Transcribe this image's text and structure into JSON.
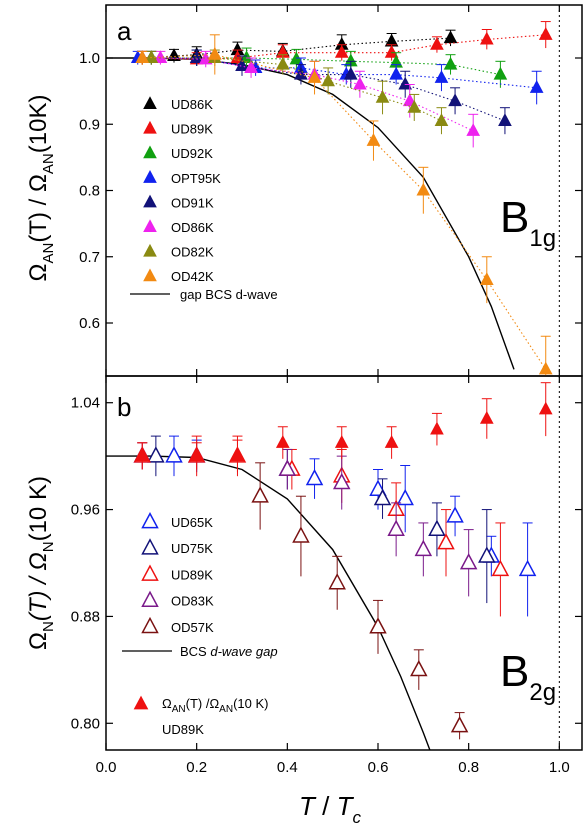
{
  "colors": {
    "UD86K": "#000000",
    "UD89K": "#ee1111",
    "UD92K": "#11a011",
    "OPT95K": "#1122ee",
    "OD91K": "#121278",
    "OD86K": "#ee22ee",
    "OD82K": "#8a8a12",
    "OD42K": "#f28a12",
    "UD65K": "#1122ee",
    "UD75K": "#121278",
    "UD89K_b": "#ee1111",
    "OD83K": "#7a1a8a",
    "OD57K": "#7a1212",
    "RedFilled": "#ee1111",
    "fit": "#000000"
  },
  "chart_data": [
    {
      "type": "scatter",
      "panel_label": "a",
      "symmetry_label": "B",
      "symmetry_sub": "1g",
      "ylabel_parts": [
        "Ω",
        "AN",
        "(T) / Ω",
        "AN",
        "(10K)"
      ],
      "xlabel": "",
      "xlim": [
        0.0,
        1.05
      ],
      "ylim": [
        0.52,
        1.08
      ],
      "yticks": [
        0.6,
        0.7,
        0.8,
        0.9,
        1.0
      ],
      "ytick_labels": [
        "0.6",
        "0.7",
        "0.8",
        "0.9",
        "1.0"
      ],
      "vline": 1.0,
      "grid": false,
      "legend_position": "left",
      "series": [
        {
          "name": "UD86K",
          "color_key": "UD86K",
          "marker": "filled-up-triangle",
          "dotted_fit": true,
          "x": [
            0.08,
            0.15,
            0.2,
            0.29,
            0.39,
            0.52,
            0.63,
            0.76
          ],
          "y": [
            1.0,
            1.003,
            1.005,
            1.012,
            1.01,
            1.02,
            1.025,
            1.03
          ],
          "err": [
            0.01,
            0.01,
            0.012,
            0.012,
            0.012,
            0.015,
            0.012,
            0.012
          ]
        },
        {
          "name": "UD89K",
          "color_key": "UD89K",
          "marker": "filled-up-triangle",
          "dotted_fit": true,
          "x": [
            0.08,
            0.2,
            0.29,
            0.39,
            0.52,
            0.63,
            0.73,
            0.84,
            0.97
          ],
          "y": [
            1.0,
            0.998,
            1.0,
            1.008,
            1.008,
            1.008,
            1.02,
            1.028,
            1.035
          ],
          "err": [
            0.01,
            0.01,
            0.012,
            0.012,
            0.012,
            0.012,
            0.012,
            0.015,
            0.02
          ]
        },
        {
          "name": "UD92K",
          "color_key": "UD92K",
          "marker": "filled-up-triangle",
          "dotted_fit": true,
          "x": [
            0.1,
            0.2,
            0.31,
            0.42,
            0.54,
            0.64,
            0.76,
            0.87
          ],
          "y": [
            1.0,
            1.0,
            1.0,
            0.998,
            0.995,
            0.993,
            0.99,
            0.975
          ],
          "err": [
            0.01,
            0.012,
            0.015,
            0.015,
            0.015,
            0.015,
            0.015,
            0.02
          ]
        },
        {
          "name": "OPT95K",
          "color_key": "OPT95K",
          "marker": "filled-up-triangle",
          "dotted_fit": true,
          "x": [
            0.07,
            0.2,
            0.33,
            0.43,
            0.53,
            0.64,
            0.74,
            0.95
          ],
          "y": [
            1.0,
            1.0,
            0.985,
            0.985,
            0.975,
            0.975,
            0.97,
            0.955
          ],
          "err": [
            0.01,
            0.012,
            0.012,
            0.015,
            0.015,
            0.015,
            0.02,
            0.025
          ]
        },
        {
          "name": "OD91K",
          "color_key": "OD91K",
          "marker": "filled-up-triangle",
          "dotted_fit": true,
          "x": [
            0.1,
            0.2,
            0.3,
            0.43,
            0.54,
            0.66,
            0.77,
            0.88
          ],
          "y": [
            1.0,
            1.0,
            0.988,
            0.975,
            0.975,
            0.96,
            0.935,
            0.905
          ],
          "err": [
            0.01,
            0.012,
            0.015,
            0.015,
            0.02,
            0.02,
            0.02,
            0.02
          ]
        },
        {
          "name": "OD86K",
          "color_key": "OD86K",
          "marker": "filled-up-triangle",
          "dotted_fit": true,
          "x": [
            0.12,
            0.22,
            0.32,
            0.46,
            0.56,
            0.67,
            0.81
          ],
          "y": [
            1.0,
            0.998,
            0.985,
            0.975,
            0.96,
            0.935,
            0.89
          ],
          "err": [
            0.01,
            0.012,
            0.015,
            0.02,
            0.02,
            0.025,
            0.025
          ]
        },
        {
          "name": "OD82K",
          "color_key": "OD82K",
          "marker": "filled-up-triangle",
          "dotted_fit": true,
          "x": [
            0.1,
            0.24,
            0.39,
            0.49,
            0.61,
            0.68,
            0.74
          ],
          "y": [
            1.0,
            1.0,
            0.99,
            0.965,
            0.94,
            0.925,
            0.905
          ],
          "err": [
            0.01,
            0.012,
            0.015,
            0.02,
            0.025,
            0.02,
            0.02
          ]
        },
        {
          "name": "OD42K",
          "color_key": "OD42K",
          "marker": "filled-up-triangle",
          "dotted_fit": true,
          "x": [
            0.08,
            0.24,
            0.46,
            0.59,
            0.7,
            0.84,
            0.97
          ],
          "y": [
            1.0,
            1.005,
            0.97,
            0.875,
            0.8,
            0.665,
            0.53
          ],
          "err": [
            0.01,
            0.03,
            0.025,
            0.03,
            0.035,
            0.035,
            0.05
          ]
        }
      ],
      "curve": {
        "name": "gap BCS d-wave",
        "x": [
          0.0,
          0.1,
          0.2,
          0.3,
          0.4,
          0.5,
          0.6,
          0.7,
          0.8,
          0.85,
          0.9
        ],
        "y": [
          1.0,
          1.0,
          0.998,
          0.99,
          0.975,
          0.945,
          0.895,
          0.82,
          0.7,
          0.625,
          0.53
        ]
      }
    },
    {
      "type": "scatter",
      "panel_label": "b",
      "symmetry_label": "B",
      "symmetry_sub": "2g",
      "ylabel_parts": [
        "Ω",
        "N",
        "(T) / Ω",
        "N",
        "(10 K)"
      ],
      "xlabel_parts": [
        "T",
        " / ",
        "T",
        "c"
      ],
      "xlim": [
        0.0,
        1.05
      ],
      "ylim": [
        0.78,
        1.06
      ],
      "xticks": [
        0.0,
        0.2,
        0.4,
        0.6,
        0.8,
        1.0
      ],
      "xtick_labels": [
        "0.0",
        "0.2",
        "0.4",
        "0.6",
        "0.8",
        "1.0"
      ],
      "yticks": [
        0.8,
        0.88,
        0.96,
        1.04
      ],
      "ytick_labels": [
        "0.80",
        "0.88",
        "0.96",
        "1.04"
      ],
      "vline": 1.0,
      "grid": false,
      "legend_position": "left",
      "series": [
        {
          "name": "UD65K",
          "color_key": "UD65K",
          "marker": "open-up-triangle",
          "x": [
            0.08,
            0.15,
            0.2,
            0.46,
            0.6,
            0.66,
            0.77,
            0.85,
            0.93
          ],
          "y": [
            1.0,
            1.0,
            1.0,
            0.983,
            0.975,
            0.968,
            0.955,
            0.925,
            0.915
          ],
          "err": [
            0.01,
            0.015,
            0.012,
            0.015,
            0.015,
            0.025,
            0.015,
            0.015,
            0.035
          ]
        },
        {
          "name": "UD75K",
          "color_key": "UD75K",
          "marker": "open-up-triangle",
          "x": [
            0.11,
            0.4,
            0.61,
            0.73,
            0.84
          ],
          "y": [
            1.0,
            0.99,
            0.968,
            0.945,
            0.925
          ],
          "err": [
            0.015,
            0.015,
            0.015,
            0.02,
            0.035
          ]
        },
        {
          "name": "UD89K",
          "color_key": "UD89K_b",
          "marker": "open-up-triangle",
          "x": [
            0.08,
            0.2,
            0.29,
            0.41,
            0.52,
            0.64,
            0.75,
            0.87
          ],
          "y": [
            1.0,
            1.0,
            1.0,
            0.99,
            0.985,
            0.96,
            0.935,
            0.915
          ],
          "err": [
            0.01,
            0.015,
            0.015,
            0.015,
            0.02,
            0.02,
            0.025,
            0.035
          ]
        },
        {
          "name": "OD83K",
          "color_key": "OD83K",
          "marker": "open-up-triangle",
          "x": [
            0.4,
            0.52,
            0.64,
            0.7,
            0.8
          ],
          "y": [
            0.99,
            0.98,
            0.945,
            0.93,
            0.92
          ],
          "err": [
            0.015,
            0.02,
            0.02,
            0.02,
            0.025
          ]
        },
        {
          "name": "OD57K",
          "color_key": "OD57K",
          "marker": "open-up-triangle",
          "x": [
            0.34,
            0.43,
            0.51,
            0.6,
            0.69,
            0.78
          ],
          "y": [
            0.97,
            0.94,
            0.905,
            0.872,
            0.84,
            0.798
          ],
          "err": [
            0.025,
            0.03,
            0.02,
            0.02,
            0.015,
            0.01
          ]
        },
        {
          "name": "Ω_AN(T) /Ω_AN(10 K) UD89K",
          "color_key": "RedFilled",
          "marker": "filled-up-triangle",
          "x": [
            0.08,
            0.2,
            0.29,
            0.39,
            0.52,
            0.63,
            0.73,
            0.84,
            0.97
          ],
          "y": [
            1.0,
            1.0,
            1.0,
            1.01,
            1.01,
            1.01,
            1.02,
            1.028,
            1.035
          ],
          "err": [
            0.01,
            0.01,
            0.012,
            0.012,
            0.012,
            0.012,
            0.012,
            0.015,
            0.02
          ]
        }
      ],
      "curve": {
        "name": "BCS d-wave gap",
        "x": [
          0.0,
          0.1,
          0.2,
          0.3,
          0.4,
          0.5,
          0.6,
          0.65,
          0.7,
          0.72
        ],
        "y": [
          1.0,
          1.0,
          0.999,
          0.99,
          0.968,
          0.93,
          0.872,
          0.835,
          0.793,
          0.775
        ]
      }
    }
  ],
  "legend_a": [
    "UD86K",
    "UD89K",
    "UD92K",
    "OPT95K",
    "OD91K",
    "OD86K",
    "OD82K",
    "OD42K"
  ],
  "legend_a_curve": "gap BCS d-wave",
  "legend_b": [
    "UD65K",
    "UD75K",
    "UD89K",
    "OD83K",
    "OD57K"
  ],
  "legend_b_curve_pre": "BCS ",
  "legend_b_curve_italic": "d-wave gap",
  "legend_b_extra": {
    "parts": [
      "Ω",
      "AN",
      "(T) /Ω",
      "AN",
      "(10 K)"
    ],
    "line2": "UD89K"
  }
}
